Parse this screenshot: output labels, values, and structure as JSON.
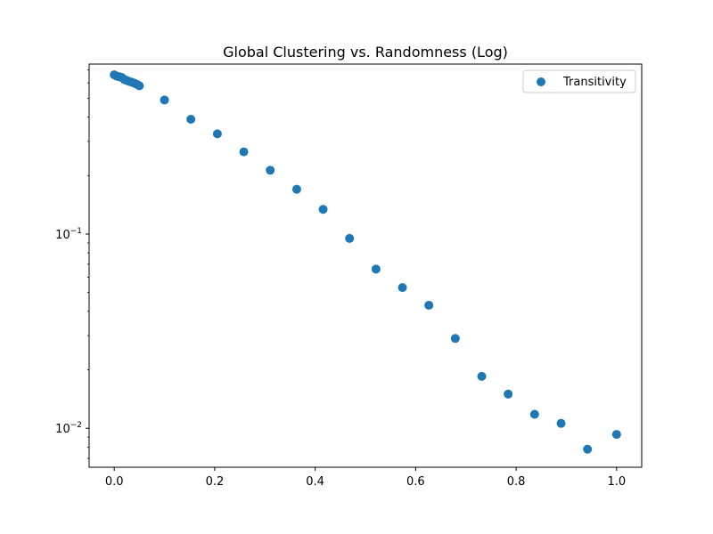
{
  "chart_data": {
    "type": "scatter",
    "title": "Global Clustering vs. Randomness (Log)",
    "xlabel": "",
    "ylabel": "",
    "xlim": [
      -0.05,
      1.05
    ],
    "ylim": [
      0.0063,
      0.75
    ],
    "yscale": "log",
    "grid": false,
    "legend_position": "top-right",
    "color": "#1f77b4",
    "x_ticks": [
      {
        "value": 0.0,
        "label": "0.0"
      },
      {
        "value": 0.2,
        "label": "0.2"
      },
      {
        "value": 0.4,
        "label": "0.4"
      },
      {
        "value": 0.6,
        "label": "0.6"
      },
      {
        "value": 0.8,
        "label": "0.8"
      },
      {
        "value": 1.0,
        "label": "1.0"
      }
    ],
    "y_major_ticks": [
      {
        "value": 0.01,
        "base": "10",
        "exp": "−2"
      },
      {
        "value": 0.1,
        "base": "10",
        "exp": "−1"
      }
    ],
    "y_minor_ticks": [
      0.007,
      0.008,
      0.009,
      0.02,
      0.03,
      0.04,
      0.05,
      0.06,
      0.07,
      0.08,
      0.09,
      0.2,
      0.3,
      0.4,
      0.5,
      0.6,
      0.7
    ],
    "series": [
      {
        "name": "Transitivity",
        "x": [
          0.0,
          0.005,
          0.01,
          0.015,
          0.02,
          0.025,
          0.03,
          0.035,
          0.04,
          0.045,
          0.05,
          0.1,
          0.1526,
          0.2053,
          0.2579,
          0.3105,
          0.3632,
          0.4158,
          0.4684,
          0.5211,
          0.5737,
          0.6263,
          0.6789,
          0.7316,
          0.7842,
          0.8368,
          0.8895,
          0.9421,
          1.0
        ],
        "y": [
          0.66,
          0.65,
          0.645,
          0.64,
          0.625,
          0.618,
          0.61,
          0.605,
          0.598,
          0.59,
          0.58,
          0.49,
          0.39,
          0.328,
          0.265,
          0.213,
          0.17,
          0.134,
          0.095,
          0.066,
          0.053,
          0.043,
          0.029,
          0.0185,
          0.015,
          0.0118,
          0.0106,
          0.0078,
          0.0093
        ]
      }
    ]
  }
}
